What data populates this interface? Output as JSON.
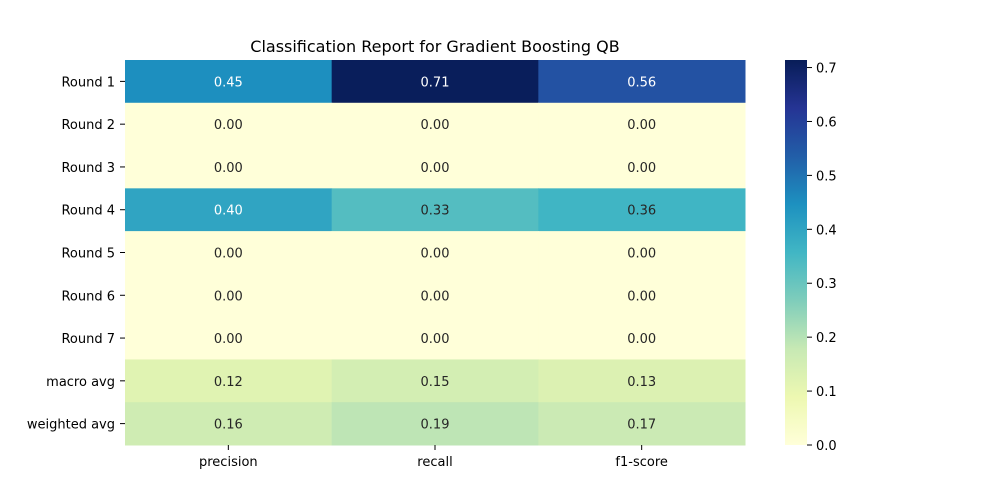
{
  "chart_data": {
    "type": "heatmap",
    "title": "Classification Report for Gradient Boosting QB",
    "columns": [
      "precision",
      "recall",
      "f1-score"
    ],
    "rows": [
      "Round 1",
      "Round 2",
      "Round 3",
      "Round 4",
      "Round 5",
      "Round 6",
      "Round 7",
      "macro avg",
      "weighted avg"
    ],
    "values": [
      [
        0.45,
        0.71,
        0.56
      ],
      [
        0.0,
        0.0,
        0.0
      ],
      [
        0.0,
        0.0,
        0.0
      ],
      [
        0.4,
        0.33,
        0.36
      ],
      [
        0.0,
        0.0,
        0.0
      ],
      [
        0.0,
        0.0,
        0.0
      ],
      [
        0.0,
        0.0,
        0.0
      ],
      [
        0.12,
        0.15,
        0.13
      ],
      [
        0.16,
        0.19,
        0.17
      ]
    ],
    "cell_labels": [
      [
        "0.45",
        "0.71",
        "0.56"
      ],
      [
        "0.00",
        "0.00",
        "0.00"
      ],
      [
        "0.00",
        "0.00",
        "0.00"
      ],
      [
        "0.40",
        "0.33",
        "0.36"
      ],
      [
        "0.00",
        "0.00",
        "0.00"
      ],
      [
        "0.00",
        "0.00",
        "0.00"
      ],
      [
        "0.00",
        "0.00",
        "0.00"
      ],
      [
        "0.12",
        "0.15",
        "0.13"
      ],
      [
        "0.16",
        "0.19",
        "0.17"
      ]
    ],
    "colormap": "YlGnBu",
    "colorbar": {
      "range": [
        0,
        0.714
      ],
      "ticks": [
        0.0,
        0.1,
        0.2,
        0.3,
        0.4,
        0.5,
        0.6,
        0.7
      ],
      "tick_labels": [
        "0.0",
        "0.1",
        "0.2",
        "0.3",
        "0.4",
        "0.5",
        "0.6",
        "0.7"
      ]
    }
  }
}
